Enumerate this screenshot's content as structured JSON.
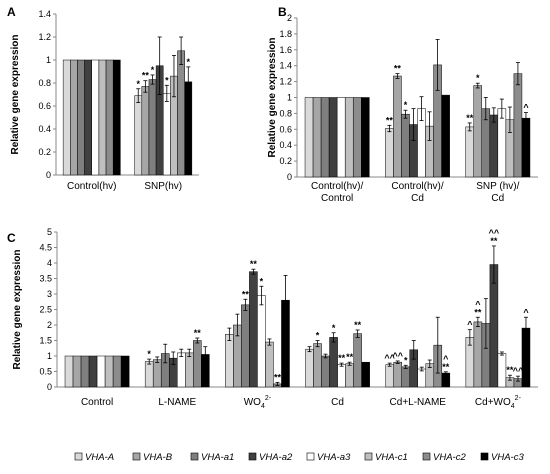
{
  "legend": [
    {
      "name": "VHA-A",
      "color": "#d9d9d9"
    },
    {
      "name": "VHA-B",
      "color": "#a6a6a6"
    },
    {
      "name": "VHA-a1",
      "color": "#7f7f7f"
    },
    {
      "name": "VHA-a2",
      "color": "#404040"
    },
    {
      "name": "VHA-a3",
      "color": "#ffffff"
    },
    {
      "name": "VHA-c1",
      "color": "#bfbfbf"
    },
    {
      "name": "VHA-c2",
      "color": "#8c8c8c"
    },
    {
      "name": "VHA-c3",
      "color": "#000000"
    }
  ],
  "chart_data": [
    {
      "type": "bar",
      "panel_label": "A",
      "ylabel": "Relative gene expression",
      "ylim": [
        0,
        1.4
      ],
      "yticks": [
        "0",
        "0.2",
        "0.4",
        "0.6",
        "0.8",
        "1",
        "1.2",
        "1.4"
      ],
      "categories": [
        "Control(hv)",
        "SNP(hv)"
      ],
      "values": [
        [
          1,
          1,
          1,
          1,
          1,
          1,
          1,
          1
        ],
        [
          0.69,
          0.77,
          0.83,
          0.95,
          0.71,
          0.86,
          1.08,
          0.81
        ]
      ],
      "errors": [
        [
          0,
          0,
          0,
          0,
          0,
          0,
          0,
          0
        ],
        [
          0.06,
          0.05,
          0.04,
          0.25,
          0.07,
          0.18,
          0.12,
          0.13
        ]
      ],
      "marks": [
        [
          "",
          "",
          "",
          "",
          "",
          "",
          "",
          ""
        ],
        [
          "*",
          "**",
          "*",
          "",
          "*",
          "",
          "",
          "*"
        ]
      ]
    },
    {
      "type": "bar",
      "panel_label": "B",
      "ylabel": "Relative gene expression",
      "ylim": [
        0,
        2
      ],
      "yticks": [
        "0",
        "0.2",
        "0.4",
        "0.6",
        "0.8",
        "1",
        "1.2",
        "1.4",
        "1.6",
        "1.8",
        "2"
      ],
      "categories": [
        {
          "line1": "Control(hv)/",
          "line2": "Control"
        },
        {
          "line1": "Control(hv)/",
          "line2": "Cd"
        },
        {
          "line1": "SNP (hv)/",
          "line2": "Cd"
        }
      ],
      "values": [
        [
          1,
          1,
          1,
          1,
          1,
          1,
          1,
          1
        ],
        [
          0.61,
          1.27,
          0.79,
          0.66,
          0.86,
          0.64,
          1.41,
          1.03
        ],
        [
          0.63,
          1.15,
          0.86,
          0.78,
          0.86,
          0.72,
          1.3,
          0.74
        ]
      ],
      "errors": [
        [
          0,
          0,
          0,
          0,
          0,
          0,
          0,
          0
        ],
        [
          0.04,
          0.03,
          0.05,
          0.2,
          0.15,
          0.18,
          0.32,
          0.0
        ],
        [
          0.05,
          0.03,
          0.14,
          0.09,
          0.12,
          0.16,
          0.14,
          0.07
        ]
      ],
      "marks": [
        [
          "",
          "",
          "",
          "",
          "",
          "",
          "",
          ""
        ],
        [
          "**",
          "**",
          "*",
          "",
          "",
          "",
          "",
          ""
        ],
        [
          "**",
          "*",
          "",
          "",
          "",
          "",
          "",
          "^"
        ]
      ]
    },
    {
      "type": "bar",
      "panel_label": "C",
      "ylabel": "Relative gene expression",
      "ylim": [
        0,
        5
      ],
      "yticks": [
        "0",
        "0.5",
        "1",
        "1.5",
        "2",
        "2.5",
        "3",
        "3.5",
        "4",
        "4.5",
        "5"
      ],
      "categories": [
        {
          "main": "Control",
          "sub": "",
          "sup": ""
        },
        {
          "main": "L-NAME",
          "sub": "",
          "sup": ""
        },
        {
          "main": "WO",
          "sub": "4",
          "sup": "2-"
        },
        {
          "main": "Cd",
          "sub": "",
          "sup": ""
        },
        {
          "main": "Cd+L-NAME",
          "sub": "",
          "sup": ""
        },
        {
          "main": "Cd+WO",
          "sub": "4",
          "sup": "2-"
        }
      ],
      "values": [
        [
          1,
          1,
          1,
          1,
          1,
          1,
          1,
          1
        ],
        [
          0.82,
          0.88,
          1.08,
          0.93,
          1.1,
          1.1,
          1.5,
          1.05
        ],
        [
          1.7,
          2.0,
          2.65,
          3.72,
          2.95,
          1.45,
          0.1,
          2.8
        ],
        [
          1.22,
          1.4,
          1.0,
          1.6,
          0.72,
          0.75,
          1.72,
          0.8
        ],
        [
          0.72,
          0.8,
          0.65,
          1.2,
          0.58,
          0.75,
          1.35,
          0.45
        ],
        [
          1.6,
          2.1,
          2.05,
          3.95,
          1.08,
          0.3,
          0.27,
          1.9
        ]
      ],
      "errors": [
        [
          0,
          0,
          0,
          0,
          0,
          0,
          0,
          0
        ],
        [
          0.08,
          0.09,
          0.3,
          0.2,
          0.12,
          0.12,
          0.08,
          0.25
        ],
        [
          0.2,
          0.35,
          0.18,
          0.08,
          0.3,
          0.1,
          0.05,
          0.8
        ],
        [
          0.08,
          0.1,
          0.06,
          0.15,
          0.05,
          0.05,
          0.12,
          0.0
        ],
        [
          0.05,
          0.04,
          0.05,
          0.3,
          0.06,
          0.12,
          0.9,
          0.04
        ],
        [
          0.25,
          0.15,
          0.8,
          0.6,
          0.05,
          0.08,
          0.08,
          0.35
        ]
      ],
      "marks": [
        [
          "",
          "",
          "",
          "",
          "",
          "",
          "",
          ""
        ],
        [
          "*",
          "",
          "",
          "",
          "",
          "",
          "**",
          ""
        ],
        [
          "",
          "",
          "**",
          "**",
          "*",
          "",
          "**",
          ""
        ],
        [
          "",
          "*",
          "",
          "*",
          "**",
          "**",
          "**",
          ""
        ],
        [
          "^^",
          "^^",
          "*",
          "",
          "",
          "",
          "",
          "^ **"
        ],
        [
          "^",
          "^ **",
          "",
          "^^ **",
          "",
          "**",
          "^^",
          "^"
        ]
      ]
    }
  ]
}
